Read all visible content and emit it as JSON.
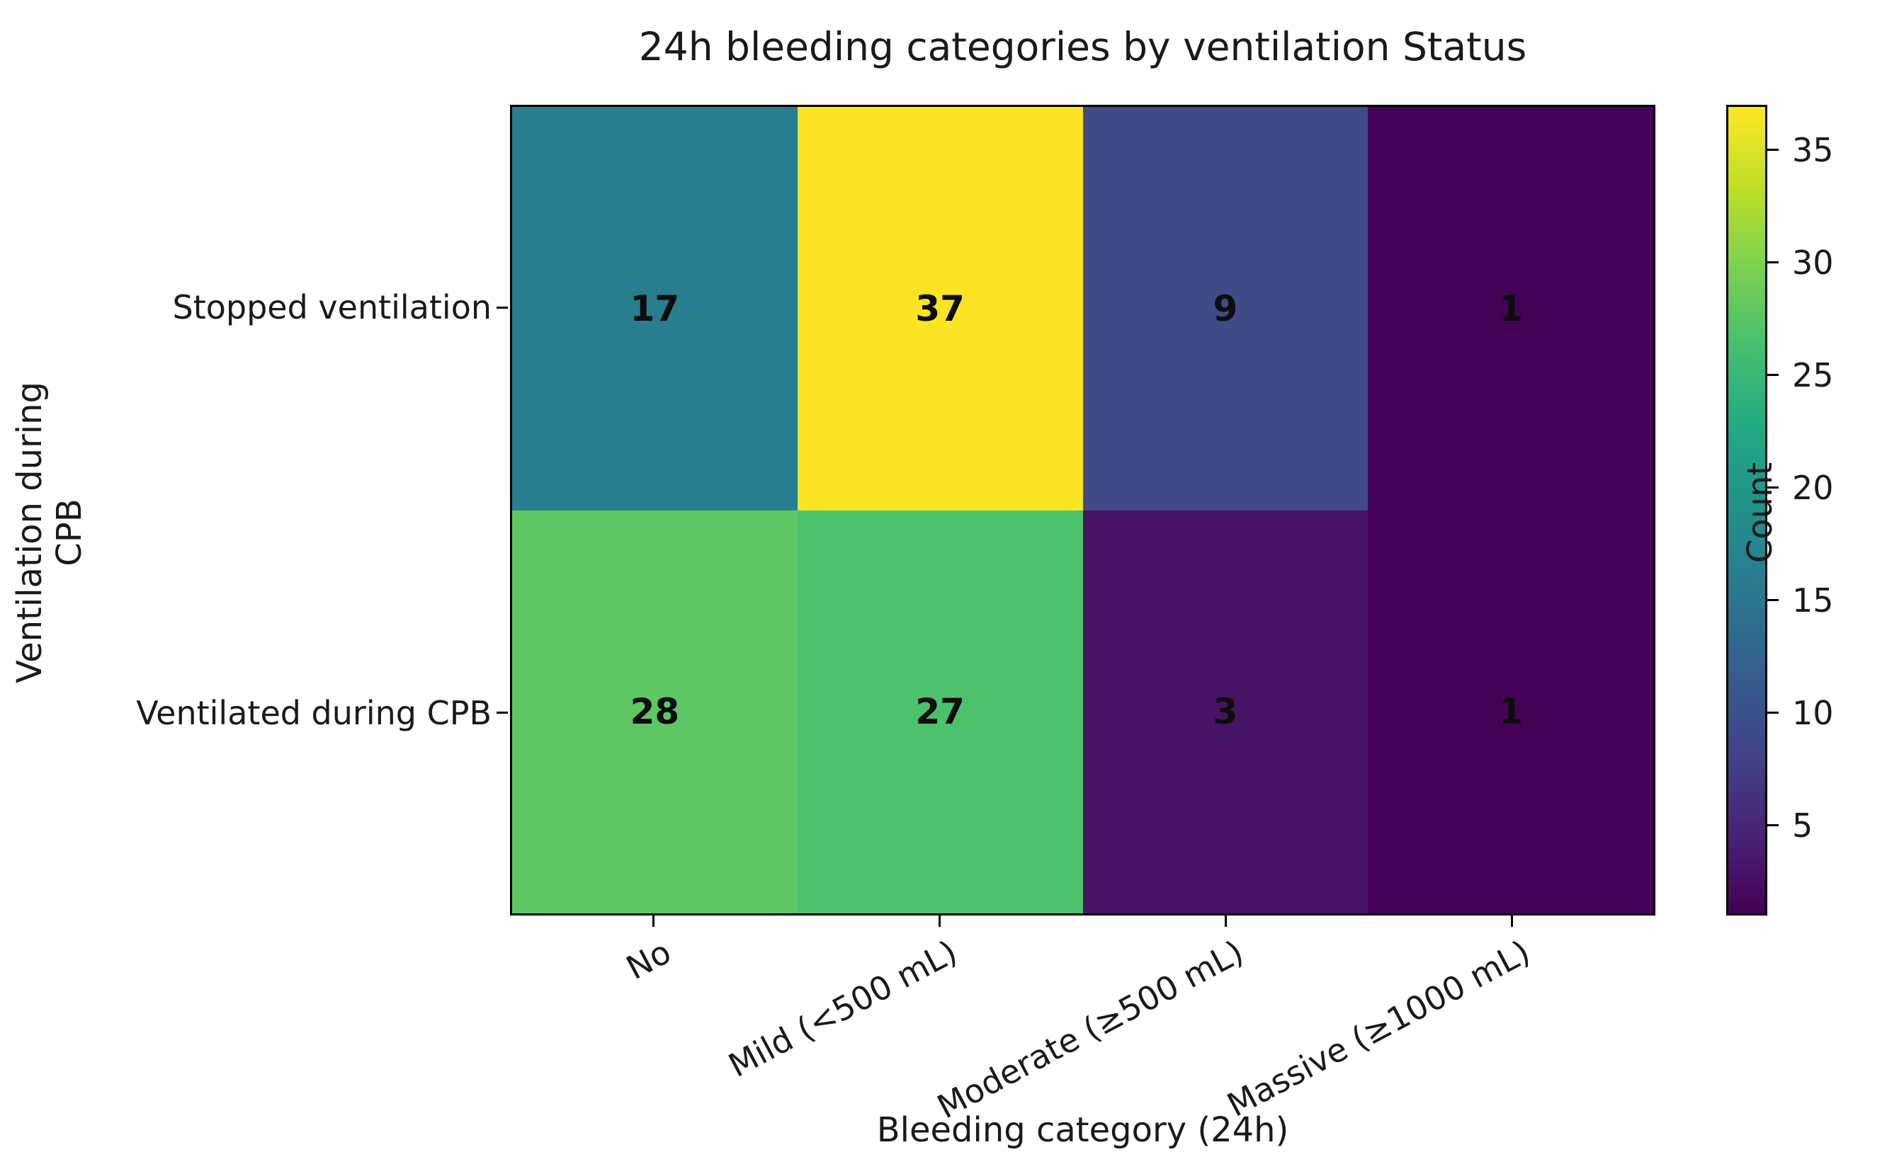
{
  "title": "24h bleeding categories by ventilation Status",
  "chart_data": {
    "type": "heatmap",
    "title": "24h bleeding categories by ventilation Status",
    "xlabel": "Bleeding category (24h)",
    "ylabel": "Ventilation during CPB",
    "x_categories": [
      "No",
      "Mild (<500 mL)",
      "Moderate (≥500 mL)",
      "Massive (≥1000 mL)"
    ],
    "y_categories": [
      "Stopped ventilation",
      "Ventilated during CPB"
    ],
    "values": [
      [
        17,
        37,
        9,
        1
      ],
      [
        28,
        27,
        3,
        1
      ]
    ],
    "cell_colors": [
      [
        "#287d8e",
        "#fbe423",
        "#3f4a87",
        "#440256"
      ],
      [
        "#5dc863",
        "#4bc16c",
        "#471365",
        "#440256"
      ]
    ],
    "colormap": "viridis",
    "colorbar_label": "Count",
    "colorbar_ticks": [
      5,
      10,
      15,
      20,
      25,
      30,
      35
    ],
    "vmin": 1,
    "vmax": 37,
    "colorbar_gradient": [
      "#440154",
      "#482475",
      "#414487",
      "#355f8d",
      "#2a788e",
      "#21918c",
      "#22a884",
      "#44bf70",
      "#7ad151",
      "#bddf26",
      "#fde725"
    ],
    "grid": false,
    "legend_position": "right-colorbar"
  }
}
